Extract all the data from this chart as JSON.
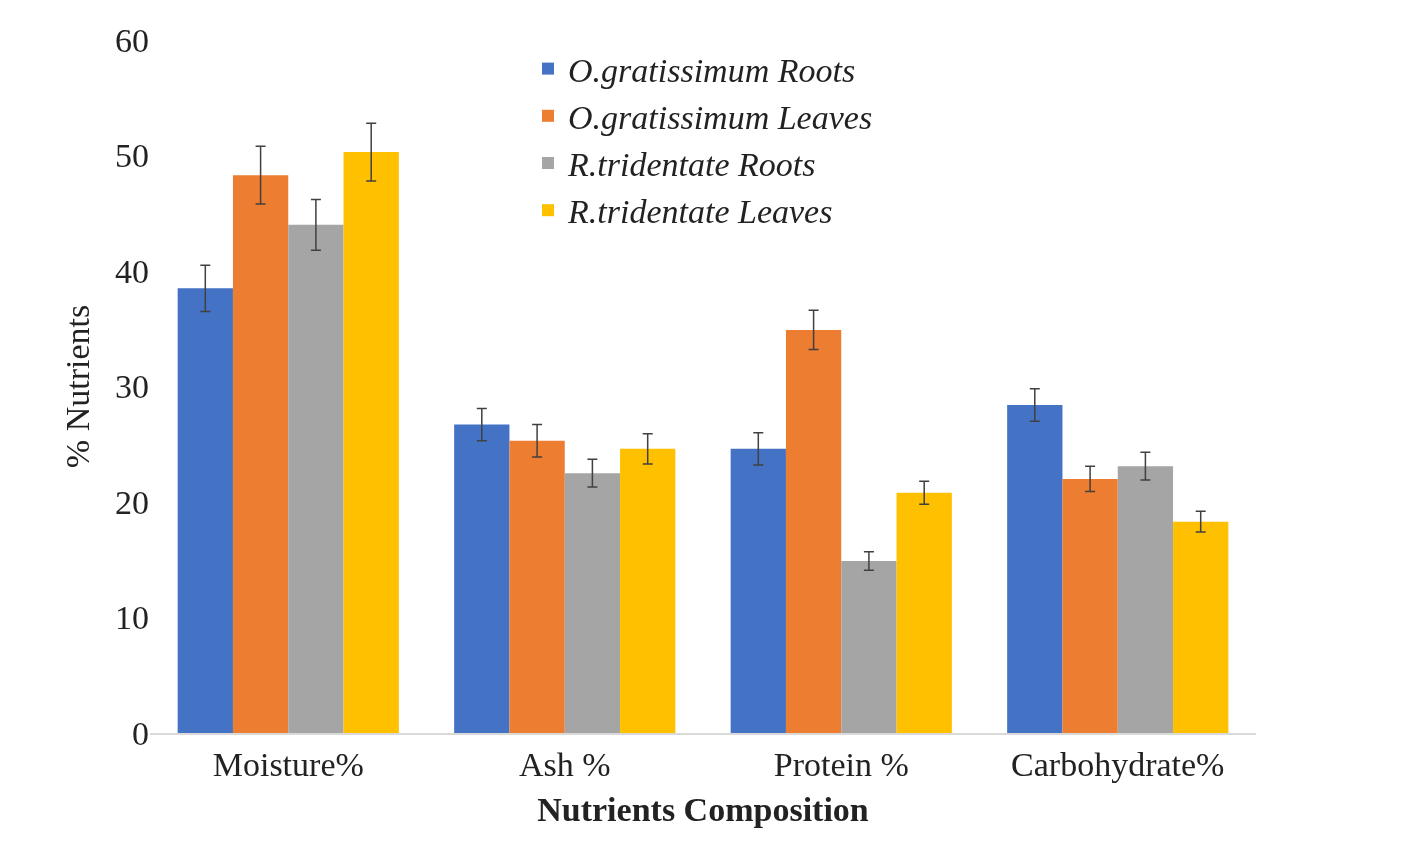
{
  "chart_data": {
    "type": "bar",
    "xlabel": "Nutrients Composition",
    "ylabel": "% Nutrients",
    "categories": [
      "Moisture%",
      "Ash %",
      "Protein %",
      "Carbohydrate%"
    ],
    "series": [
      {
        "name": "O.gratissimum Roots",
        "color": "#4472c4",
        "values": [
          38.5,
          26.7,
          24.6,
          28.4
        ],
        "errors": [
          2.0,
          1.4,
          1.4,
          1.4
        ]
      },
      {
        "name": "O.gratissimum Leaves",
        "color": "#ed7d31",
        "values": [
          48.3,
          25.3,
          34.9,
          22.0
        ],
        "errors": [
          2.5,
          1.4,
          1.7,
          1.1
        ]
      },
      {
        "name": "R.tridentate Roots",
        "color": "#a5a5a5",
        "values": [
          44.0,
          22.5,
          14.9,
          23.1
        ],
        "errors": [
          2.2,
          1.2,
          0.8,
          1.2
        ]
      },
      {
        "name": "R.tridentate Leaves",
        "color": "#ffc000",
        "values": [
          50.3,
          24.6,
          20.8,
          18.3
        ],
        "errors": [
          2.5,
          1.3,
          1.0,
          0.9
        ]
      }
    ],
    "ylim": [
      0,
      60
    ],
    "yticks": [
      0,
      10,
      20,
      30,
      40,
      50,
      60
    ],
    "legend": "top"
  }
}
